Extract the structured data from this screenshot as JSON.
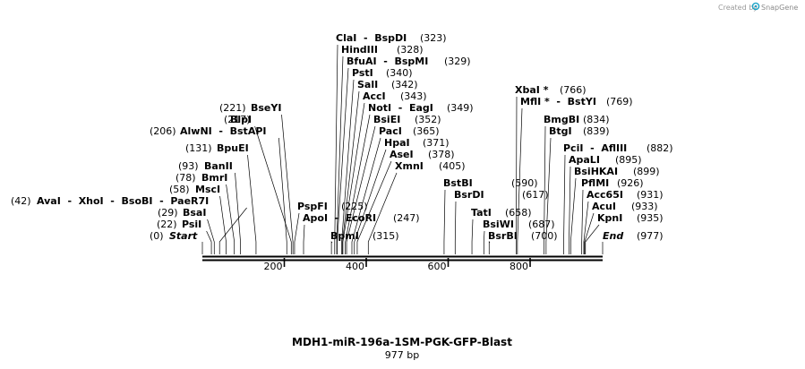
{
  "header": {
    "credit_text": "Created by",
    "brand_name": "SnapGene",
    "brand_color": "#1aa3c7"
  },
  "map": {
    "title": "MDH1-miR-196a-1SM-PGK-GFP-Blast",
    "length_label": "977 bp",
    "length_bp": 977,
    "ruler_ticks": [
      "200",
      "400",
      "600",
      "800"
    ],
    "start_label": "Start",
    "start_pos": "(0)",
    "end_label": "End",
    "end_pos": "(977)",
    "sites": [
      {
        "name": "PsiI",
        "pos": "(22)",
        "bp": 22
      },
      {
        "name": "BsaI",
        "pos": "(29)",
        "bp": 29
      },
      {
        "name": "AvaI  -  XhoI  -  BsoBI  -  PaeR7I",
        "pos": "(42)",
        "bp": 42
      },
      {
        "name": "MscI",
        "pos": "(58)",
        "bp": 58
      },
      {
        "name": "BmrI",
        "pos": "(78)",
        "bp": 78
      },
      {
        "name": "BanII",
        "pos": "(93)",
        "bp": 93
      },
      {
        "name": "BpuEI",
        "pos": "(131)",
        "bp": 131
      },
      {
        "name": "AlwNI  -  BstAPI",
        "pos": "(206)",
        "bp": 206
      },
      {
        "name": "BlpI",
        "pos": "(217)",
        "bp": 217
      },
      {
        "name": "BseYI",
        "pos": "(221)",
        "bp": 221
      },
      {
        "name": "PspFI",
        "pos": "(225)",
        "bp": 225
      },
      {
        "name": "ApoI  -  EcoRI",
        "pos": "(247)",
        "bp": 247
      },
      {
        "name": "BpmI",
        "pos": "(315)",
        "bp": 315
      },
      {
        "name": "ClaI  -  BspDI",
        "pos": "(323)",
        "bp": 323
      },
      {
        "name": "HindIII",
        "pos": "(328)",
        "bp": 328
      },
      {
        "name": "BfuAI  -  BspMI",
        "pos": "(329)",
        "bp": 329
      },
      {
        "name": "PstI",
        "pos": "(340)",
        "bp": 340
      },
      {
        "name": "SalI",
        "pos": "(342)",
        "bp": 342
      },
      {
        "name": "AccI",
        "pos": "(343)",
        "bp": 343
      },
      {
        "name": "NotI  -  EagI",
        "pos": "(349)",
        "bp": 349
      },
      {
        "name": "BsiEI",
        "pos": "(352)",
        "bp": 352
      },
      {
        "name": "PacI",
        "pos": "(365)",
        "bp": 365
      },
      {
        "name": "HpaI",
        "pos": "(371)",
        "bp": 371
      },
      {
        "name": "AseI",
        "pos": "(378)",
        "bp": 378
      },
      {
        "name": "XmnI",
        "pos": "(405)",
        "bp": 405
      },
      {
        "name": "BstBI",
        "pos": "(590)",
        "bp": 590
      },
      {
        "name": "BsrDI",
        "pos": "(617)",
        "bp": 617
      },
      {
        "name": "TatI",
        "pos": "(658)",
        "bp": 658
      },
      {
        "name": "BsiWI",
        "pos": "(687)",
        "bp": 687
      },
      {
        "name": "BsrBI",
        "pos": "(700)",
        "bp": 700
      },
      {
        "name": "XbaI *",
        "pos": "(766)",
        "bp": 766
      },
      {
        "name": "MflI *  -  BstYI",
        "pos": "(769)",
        "bp": 769
      },
      {
        "name": "BmgBI",
        "pos": "(834)",
        "bp": 834
      },
      {
        "name": "BtgI",
        "pos": "(839)",
        "bp": 839
      },
      {
        "name": "PciI  -  AflIII",
        "pos": "(882)",
        "bp": 882
      },
      {
        "name": "ApaLI",
        "pos": "(895)",
        "bp": 895
      },
      {
        "name": "BsiHKAI",
        "pos": "(899)",
        "bp": 899
      },
      {
        "name": "PflMI",
        "pos": "(926)",
        "bp": 926
      },
      {
        "name": "Acc65I",
        "pos": "(931)",
        "bp": 931
      },
      {
        "name": "AcuI",
        "pos": "(933)",
        "bp": 933
      },
      {
        "name": "KpnI",
        "pos": "(935)",
        "bp": 935
      }
    ]
  }
}
